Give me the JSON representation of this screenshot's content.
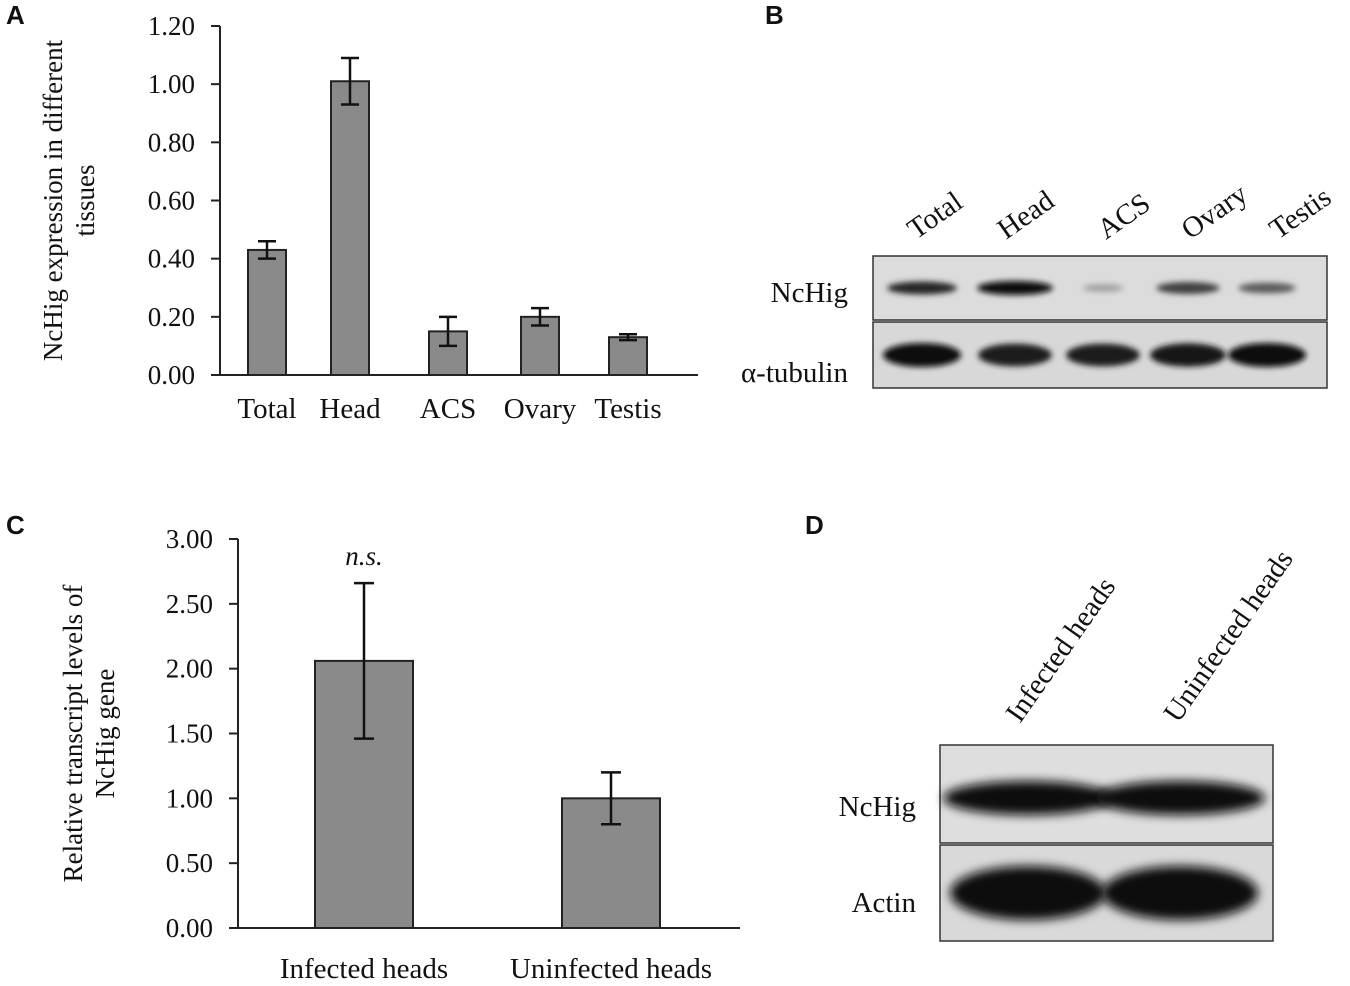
{
  "panels": {
    "a": {
      "letter": "A"
    },
    "b": {
      "letter": "B",
      "lanes": [
        "Total",
        "Head",
        "ACS",
        "Ovary",
        "Testis"
      ],
      "rows": [
        "NcHig",
        "α-tubulin"
      ],
      "band_intensity": {
        "NcHig": [
          0.85,
          1.0,
          0.15,
          0.7,
          0.55
        ],
        "α-tubulin": [
          1.0,
          0.9,
          0.9,
          0.95,
          1.0
        ]
      }
    },
    "c": {
      "letter": "C"
    },
    "d": {
      "letter": "D",
      "lanes": [
        "Infected heads",
        "Uninfected heads"
      ],
      "rows": [
        "NcHig",
        "Actin"
      ],
      "band_intensity": {
        "NcHig": [
          1.0,
          1.0
        ],
        "Actin": [
          1.0,
          1.0
        ]
      }
    }
  },
  "chart_data": [
    {
      "panel": "A",
      "type": "bar",
      "categories": [
        "Total",
        "Head",
        "ACS",
        "Ovary",
        "Testis"
      ],
      "values": [
        0.43,
        1.01,
        0.15,
        0.2,
        0.13
      ],
      "errors": [
        0.03,
        0.08,
        0.05,
        0.03,
        0.01
      ],
      "ylabel_lines": [
        "NcHig expression in different",
        "tissues"
      ],
      "ylim": [
        0,
        1.2
      ],
      "yticks": [
        "0.00",
        "0.20",
        "0.40",
        "0.60",
        "0.80",
        "1.00",
        "1.20"
      ],
      "bar_color": "#8a8a8a"
    },
    {
      "panel": "C",
      "type": "bar",
      "categories": [
        "Infected heads",
        "Uninfected heads"
      ],
      "values": [
        2.06,
        1.0
      ],
      "errors": [
        0.6,
        0.2
      ],
      "ylabel_lines": [
        "Relative transcript levels of",
        "NcHig gene"
      ],
      "ylim": [
        0,
        3.0
      ],
      "yticks": [
        "0.00",
        "0.50",
        "1.00",
        "1.50",
        "2.00",
        "2.50",
        "3.00"
      ],
      "annotation": "n.s.",
      "bar_color": "#8a8a8a"
    }
  ]
}
